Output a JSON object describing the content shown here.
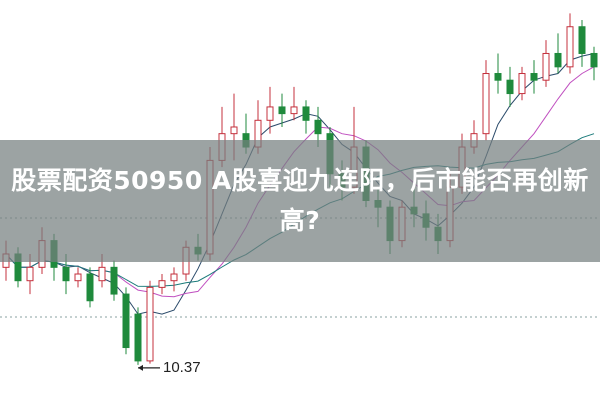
{
  "headline": "股票配资50950 A股喜迎九连阳，后市能否再创新高?",
  "chart_data": {
    "type": "candlestick",
    "ylim": [
      10.1,
      13.1
    ],
    "grid": false,
    "annotations": [
      {
        "label": "10.37",
        "target": "low"
      }
    ],
    "colors": {
      "up": "#c4303c",
      "down": "#1f8a3c",
      "ma": [
        "#2a4a6a",
        "#c050c0",
        "#1a7a7a"
      ]
    },
    "candles": [
      [
        11.1,
        11.2,
        11.3,
        11.0
      ],
      [
        11.2,
        11.0,
        11.25,
        10.95
      ],
      [
        11.0,
        11.1,
        11.2,
        10.9
      ],
      [
        11.1,
        11.3,
        11.4,
        11.05
      ],
      [
        11.3,
        11.1,
        11.35,
        11.0
      ],
      [
        11.1,
        11.0,
        11.2,
        10.9
      ],
      [
        11.0,
        11.05,
        11.1,
        10.95
      ],
      [
        11.05,
        10.85,
        11.1,
        10.8
      ],
      [
        11.0,
        11.1,
        11.2,
        10.95
      ],
      [
        11.1,
        10.9,
        11.15,
        10.85
      ],
      [
        10.9,
        10.5,
        10.95,
        10.45
      ],
      [
        10.75,
        10.4,
        10.8,
        10.37
      ],
      [
        10.4,
        10.95,
        11.0,
        10.38
      ],
      [
        10.95,
        11.0,
        11.05,
        10.9
      ],
      [
        11.0,
        11.05,
        11.1,
        10.92
      ],
      [
        11.05,
        11.25,
        11.3,
        11.0
      ],
      [
        11.25,
        11.2,
        11.35,
        11.15
      ],
      [
        11.2,
        11.9,
        12.0,
        11.15
      ],
      [
        11.9,
        12.1,
        12.3,
        11.85
      ],
      [
        12.1,
        12.15,
        12.4,
        11.9
      ],
      [
        12.1,
        12.0,
        12.25,
        11.95
      ],
      [
        12.0,
        12.2,
        12.35,
        11.95
      ],
      [
        12.2,
        12.3,
        12.45,
        12.1
      ],
      [
        12.3,
        12.25,
        12.4,
        12.15
      ],
      [
        12.25,
        12.3,
        12.45,
        12.2
      ],
      [
        12.3,
        12.2,
        12.35,
        12.1
      ],
      [
        12.2,
        12.1,
        12.3,
        12.0
      ],
      [
        12.1,
        11.8,
        12.15,
        11.7
      ],
      [
        11.8,
        11.7,
        11.9,
        11.6
      ],
      [
        11.7,
        12.0,
        12.3,
        11.65
      ],
      [
        12.0,
        11.6,
        12.05,
        11.55
      ],
      [
        11.6,
        11.55,
        11.7,
        11.4
      ],
      [
        11.55,
        11.3,
        11.6,
        11.2
      ],
      [
        11.3,
        11.55,
        11.6,
        11.25
      ],
      [
        11.55,
        11.5,
        11.7,
        11.4
      ],
      [
        11.5,
        11.4,
        11.6,
        11.3
      ],
      [
        11.4,
        11.3,
        11.5,
        11.2
      ],
      [
        11.3,
        11.7,
        11.8,
        11.25
      ],
      [
        11.7,
        12.0,
        12.1,
        11.65
      ],
      [
        12.0,
        12.1,
        12.2,
        11.95
      ],
      [
        12.1,
        12.55,
        12.65,
        12.05
      ],
      [
        12.55,
        12.5,
        12.7,
        12.4
      ],
      [
        12.5,
        12.4,
        12.6,
        12.3
      ],
      [
        12.4,
        12.55,
        12.6,
        12.35
      ],
      [
        12.55,
        12.5,
        12.65,
        12.4
      ],
      [
        12.5,
        12.7,
        12.8,
        12.45
      ],
      [
        12.7,
        12.6,
        12.85,
        12.55
      ],
      [
        12.6,
        12.9,
        13.0,
        12.55
      ],
      [
        12.9,
        12.7,
        12.95,
        12.6
      ],
      [
        12.7,
        12.6,
        12.75,
        12.5
      ]
    ]
  }
}
